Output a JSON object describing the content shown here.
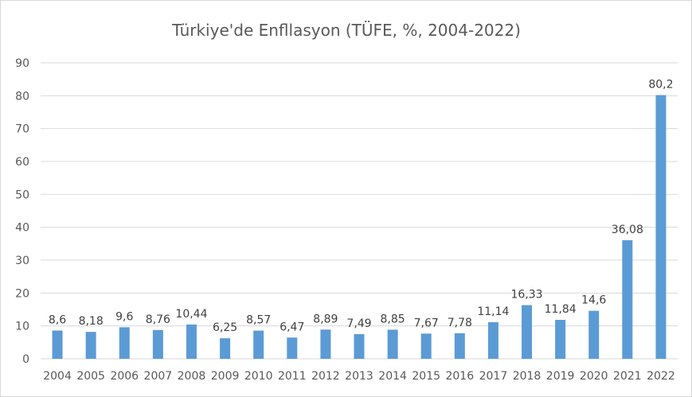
{
  "chart_data": {
    "type": "bar",
    "title": "Türkiye'de Enfllasyon (TÜFE, %, 2004-2022)",
    "xlabel": "",
    "ylabel": "",
    "ylim": [
      0,
      90
    ],
    "yticks": [
      "0",
      "10",
      "20",
      "30",
      "40",
      "50",
      "60",
      "70",
      "80",
      "90"
    ],
    "grid": true,
    "bar_color": "#5b9bd5",
    "categories": [
      "2004",
      "2005",
      "2006",
      "2007",
      "2008",
      "2009",
      "2010",
      "2011",
      "2012",
      "2013",
      "2014",
      "2015",
      "2016",
      "2017",
      "2018",
      "2019",
      "2020",
      "2021",
      "2022"
    ],
    "values": [
      8.6,
      8.18,
      9.6,
      8.76,
      10.44,
      6.25,
      8.57,
      6.47,
      8.89,
      7.49,
      8.85,
      7.67,
      7.78,
      11.14,
      16.33,
      11.84,
      14.6,
      36.08,
      80.2
    ],
    "value_labels": [
      "8,6",
      "8,18",
      "9,6",
      "8,76",
      "10,44",
      "6,25",
      "8,57",
      "6,47",
      "8,89",
      "7,49",
      "8,85",
      "7,67",
      "7,78",
      "11,14",
      "16,33",
      "11,84",
      "14,6",
      "36,08",
      "80,2"
    ]
  }
}
